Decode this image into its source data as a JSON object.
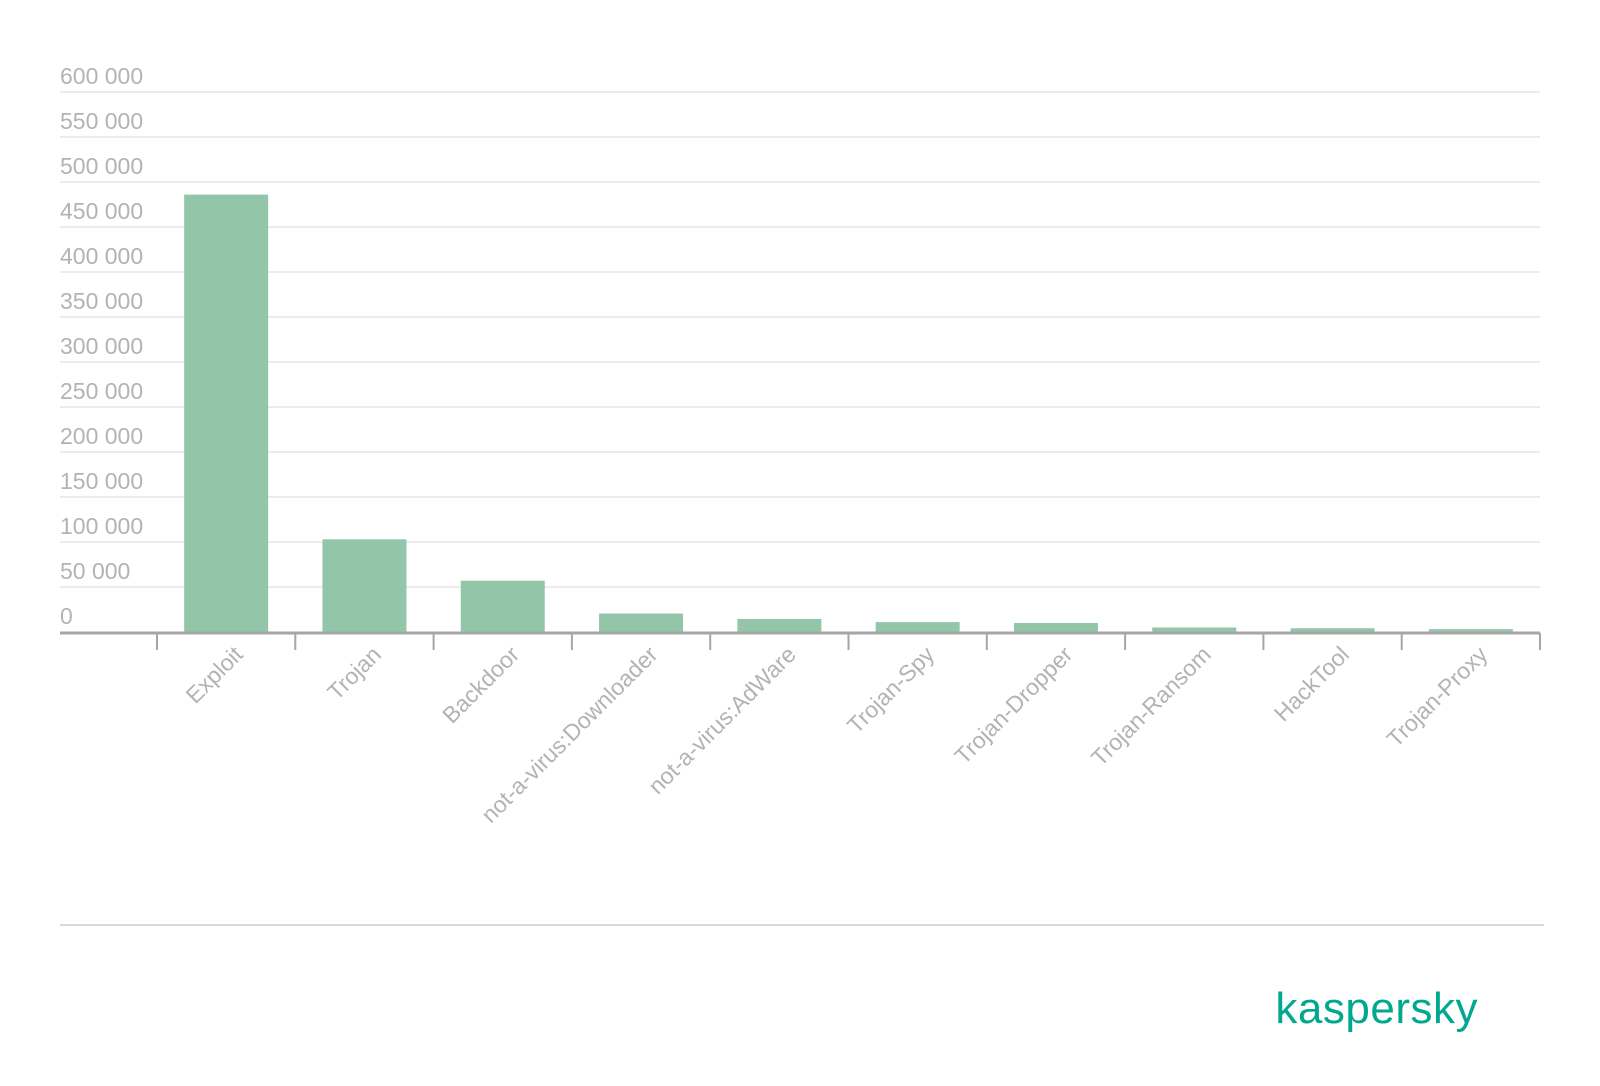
{
  "chart_data": {
    "type": "bar",
    "categories": [
      "Exploit",
      "Trojan",
      "Backdoor",
      "not-a-virus:Downloader",
      "not-a-virus:AdWare",
      "Trojan-Spy",
      "Trojan-Dropper",
      "Trojan-Ransom",
      "HackTool",
      "Trojan-Proxy"
    ],
    "values": [
      486000,
      103000,
      57000,
      20500,
      14500,
      11000,
      10000,
      5000,
      4200,
      3200
    ],
    "ylim": [
      0,
      600000
    ],
    "yticks": [
      0,
      50000,
      100000,
      150000,
      200000,
      250000,
      300000,
      350000,
      400000,
      450000,
      500000,
      550000,
      600000
    ],
    "ytick_labels": [
      "0",
      "50 000",
      "100 000",
      "150 000",
      "200 000",
      "250 000",
      "300 000",
      "350 000",
      "400 000",
      "450 000",
      "500 000",
      "550 000",
      "600 000"
    ],
    "grid": true,
    "bar_color": "#93c5a9",
    "text_color": "#b3b3b3"
  },
  "brand": {
    "name": "kaspersky",
    "color": "#00a88e"
  }
}
